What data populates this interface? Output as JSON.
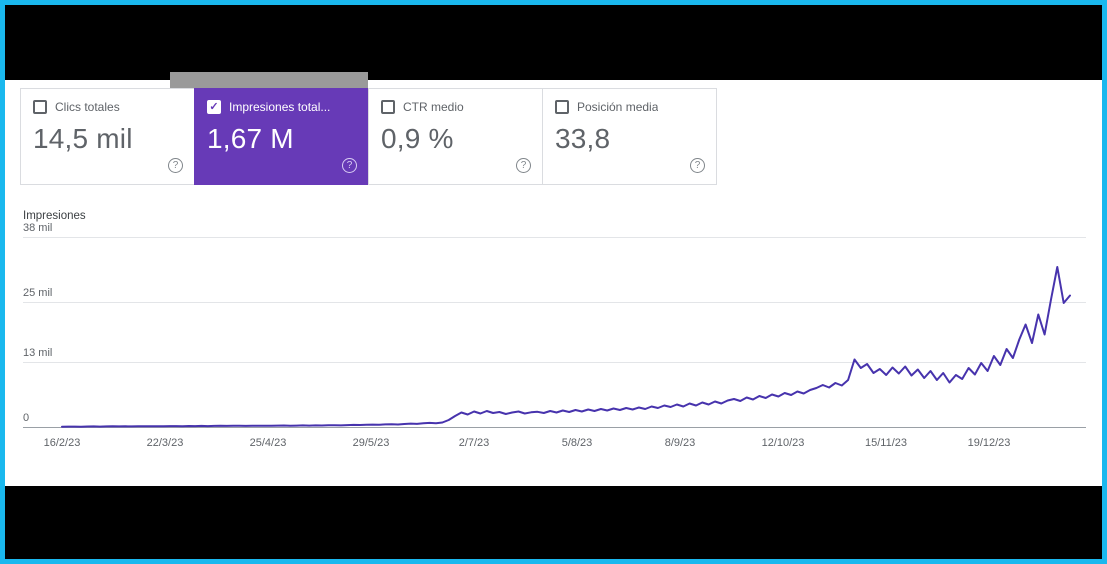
{
  "theme": {
    "frame_border": "#1ab8ee",
    "redaction_color": "#000000",
    "selected_card_bg": "#673ab7",
    "line_color": "#4733ad",
    "grid_color": "#e3e5e8",
    "baseline_color": "#9aa0a6",
    "secondary_text": "#5f6368"
  },
  "icons": {
    "help": "?",
    "checkbox_check": "✓"
  },
  "cards": [
    {
      "label": "Clics totales",
      "value": "14,5 mil",
      "checked": false,
      "selected": false
    },
    {
      "label": "Impresiones total...",
      "value": "1,67 M",
      "checked": true,
      "selected": true
    },
    {
      "label": "CTR medio",
      "value": "0,9 %",
      "checked": false,
      "selected": false
    },
    {
      "label": "Posición media",
      "value": "33,8",
      "checked": false,
      "selected": false
    }
  ],
  "chart_data": {
    "type": "line",
    "title": "Impresiones",
    "ylabel": "Impresiones",
    "ylim": [
      0,
      38000
    ],
    "grid": true,
    "y_ticks": [
      {
        "label": "38 mil",
        "value": 38000
      },
      {
        "label": "25 mil",
        "value": 25000
      },
      {
        "label": "13 mil",
        "value": 13000
      },
      {
        "label": "0",
        "value": 0
      }
    ],
    "x_ticks": [
      "16/2/23",
      "22/3/23",
      "25/4/23",
      "29/5/23",
      "2/7/23",
      "5/8/23",
      "8/9/23",
      "12/10/23",
      "15/11/23",
      "19/12/23"
    ],
    "series": [
      {
        "name": "Impresiones",
        "color": "#4733ad",
        "values": [
          60,
          80,
          90,
          70,
          100,
          110,
          90,
          120,
          130,
          110,
          140,
          120,
          150,
          160,
          140,
          170,
          150,
          180,
          190,
          170,
          200,
          180,
          210,
          190,
          220,
          240,
          210,
          230,
          250,
          220,
          260,
          240,
          270,
          250,
          280,
          300,
          270,
          290,
          310,
          280,
          320,
          300,
          340,
          360,
          330,
          380,
          420,
          390,
          450,
          480,
          440,
          520,
          560,
          500,
          600,
          680,
          620,
          750,
          820,
          760,
          900,
          1400,
          2200,
          2900,
          2500,
          3100,
          2700,
          3200,
          2800,
          3000,
          2600,
          2900,
          3100,
          2700,
          2950,
          3050,
          2800,
          3200,
          2900,
          3300,
          3000,
          3400,
          3100,
          3500,
          3200,
          3600,
          3300,
          3700,
          3400,
          3800,
          3500,
          3900,
          3600,
          4100,
          3800,
          4300,
          4000,
          4500,
          4100,
          4700,
          4300,
          4900,
          4500,
          5100,
          4700,
          5300,
          5600,
          5200,
          5900,
          5500,
          6200,
          5800,
          6500,
          6100,
          6800,
          6400,
          7100,
          6700,
          7400,
          7800,
          8400,
          7900,
          8800,
          8300,
          9400,
          13500,
          11800,
          12600,
          10800,
          11600,
          10400,
          11900,
          10700,
          12100,
          10300,
          11500,
          9800,
          11200,
          9400,
          10800,
          8900,
          10400,
          9600,
          11800,
          10500,
          12800,
          11200,
          14200,
          12400,
          15600,
          13800,
          17500,
          20500,
          16800,
          22500,
          18500,
          25500,
          32000,
          24800,
          26300
        ]
      }
    ]
  }
}
